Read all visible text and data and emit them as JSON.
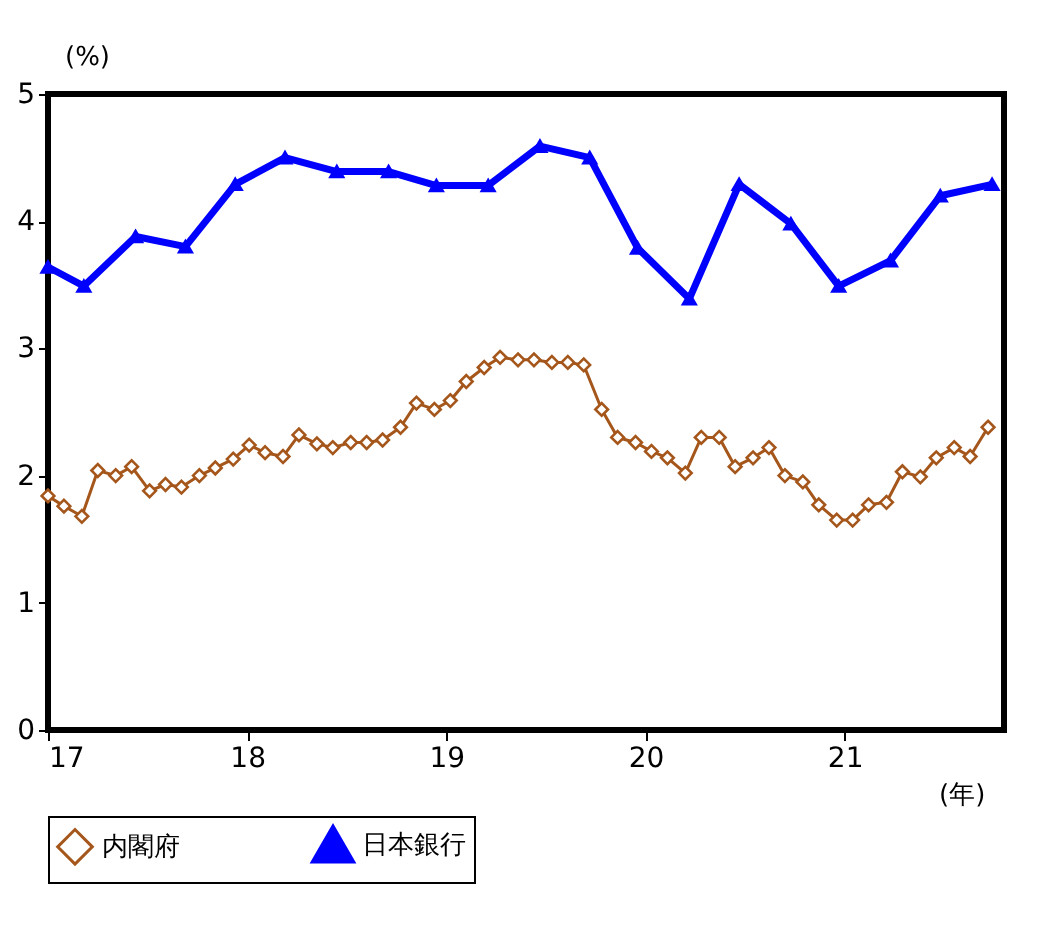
{
  "chart_data": {
    "type": "line",
    "ylabel": "(%)",
    "xlabel": "(年)",
    "xlim": [
      17,
      21.8
    ],
    "xticks": [
      17,
      18,
      19,
      20,
      21
    ],
    "ylim": [
      0,
      5
    ],
    "yticks": [
      0,
      1,
      2,
      3,
      4,
      5
    ],
    "grid": false,
    "legend": "bottom",
    "series": [
      {
        "name": "内閣府",
        "color": "#a5561b",
        "marker": "diamond",
        "x": [
          17.0,
          17.08,
          17.17,
          17.25,
          17.34,
          17.42,
          17.51,
          17.59,
          17.67,
          17.76,
          17.84,
          17.93,
          18.01,
          18.09,
          18.18,
          18.26,
          18.35,
          18.43,
          18.52,
          18.6,
          18.68,
          18.77,
          18.85,
          18.94,
          19.02,
          19.1,
          19.19,
          19.27,
          19.36,
          19.44,
          19.53,
          19.61,
          19.69,
          19.78,
          19.86,
          19.95,
          20.03,
          20.11,
          20.2,
          20.28,
          20.37,
          20.45,
          20.54,
          20.62,
          20.7,
          20.79,
          20.87,
          20.96,
          21.04,
          21.12,
          21.21,
          21.29,
          21.38,
          21.46,
          21.55,
          21.63,
          21.72
        ],
        "values": [
          1.84,
          1.76,
          1.68,
          2.04,
          2.0,
          2.07,
          1.88,
          1.93,
          1.91,
          2.0,
          2.06,
          2.13,
          2.24,
          2.18,
          2.15,
          2.32,
          2.25,
          2.22,
          2.26,
          2.26,
          2.28,
          2.38,
          2.57,
          2.52,
          2.59,
          2.74,
          2.85,
          2.93,
          2.91,
          2.91,
          2.89,
          2.89,
          2.87,
          2.52,
          2.3,
          2.26,
          2.19,
          2.14,
          2.02,
          2.3,
          2.3,
          2.07,
          2.14,
          2.22,
          2.0,
          1.95,
          1.77,
          1.65,
          1.65,
          1.77,
          1.79,
          2.03,
          1.99,
          2.14,
          2.22,
          2.15,
          2.38
        ]
      },
      {
        "name": "日本銀行",
        "color": "#0000ff",
        "marker": "triangle",
        "x": [
          17.0,
          17.18,
          17.44,
          17.69,
          17.94,
          18.19,
          18.45,
          18.71,
          18.95,
          19.21,
          19.47,
          19.72,
          19.96,
          20.22,
          20.47,
          20.73,
          20.97,
          21.23,
          21.48,
          21.74
        ],
        "values": [
          3.64,
          3.49,
          3.88,
          3.8,
          4.29,
          4.5,
          4.39,
          4.39,
          4.28,
          4.28,
          4.59,
          4.5,
          3.79,
          3.39,
          4.29,
          3.98,
          3.49,
          3.69,
          4.2,
          4.29
        ]
      }
    ]
  }
}
